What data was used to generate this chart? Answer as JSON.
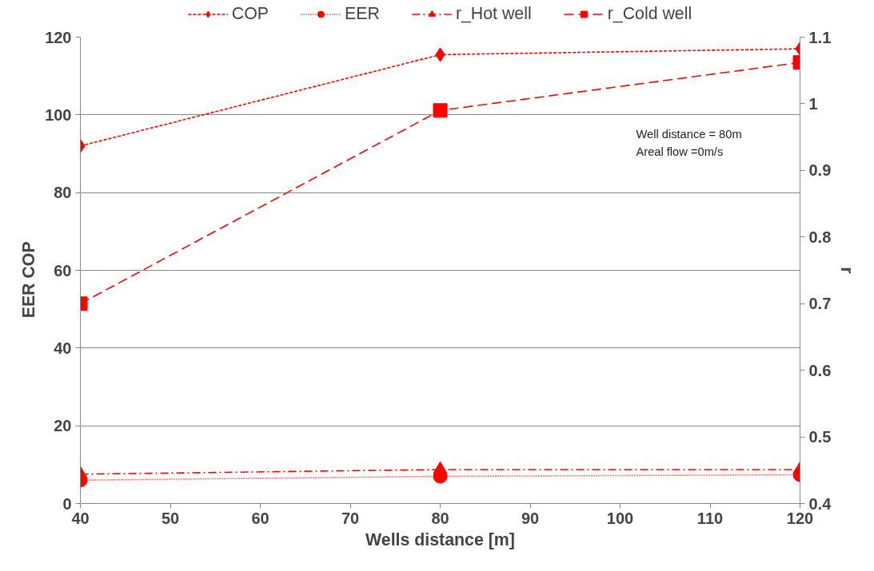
{
  "chart_data": {
    "type": "line",
    "xlabel": "Wells distance [m]",
    "ylabel": "EER     COP",
    "y2label": "r",
    "x": [
      40,
      80,
      120
    ],
    "xlim": [
      40,
      120
    ],
    "xticks": [
      40,
      50,
      60,
      70,
      80,
      90,
      100,
      110,
      120
    ],
    "ylim": [
      0,
      120
    ],
    "yticks": [
      0,
      20,
      40,
      60,
      80,
      100,
      120
    ],
    "y2lim": [
      0.4,
      1.1
    ],
    "y2ticks": [
      {
        "value": 0.4,
        "label": "0.4"
      },
      {
        "value": 0.5,
        "label": "0.5"
      },
      {
        "value": 0.6,
        "label": "0.6"
      },
      {
        "value": 0.7,
        "label": "0.7"
      },
      {
        "value": 0.8,
        "label": "0.8"
      },
      {
        "value": 0.9,
        "label": "0.9"
      },
      {
        "value": 1.0,
        "label": "1"
      },
      {
        "value": 1.1,
        "label": "1.1"
      }
    ],
    "grid": "y",
    "legend": "top",
    "annotations": [
      "Well distance = 80m",
      "Areal flow =0m/s"
    ],
    "series": [
      {
        "name": "COP",
        "color": "#ff0000",
        "marker": "diamond",
        "line_style": "dashed",
        "values": [
          92,
          115.5,
          117
        ]
      },
      {
        "name": "EER",
        "color": "#ff0000",
        "marker": "circle",
        "line_style": "dotted",
        "values": [
          6,
          7,
          7.4
        ]
      },
      {
        "name": "r_Hot well",
        "color": "#ff0000",
        "marker": "triangle",
        "line_style": "dashdot",
        "axis": "y2",
        "values": [
          0.444,
          0.451,
          0.451
        ]
      },
      {
        "name": "r_Cold well",
        "color": "#ff0000",
        "marker": "square",
        "line_style": "longdash",
        "axis": "y2",
        "values": [
          0.7,
          0.99,
          1.062
        ]
      }
    ]
  }
}
